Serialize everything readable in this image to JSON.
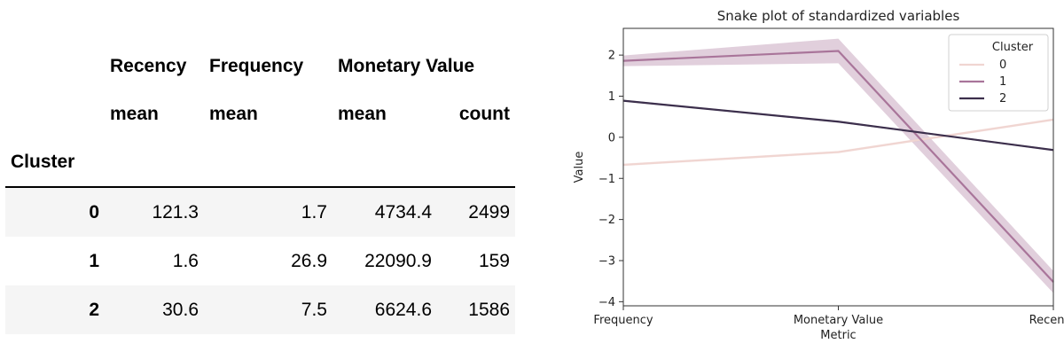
{
  "table": {
    "columns_top": [
      "Recency",
      "Frequency",
      "Monetary Value",
      ""
    ],
    "columns_sub": [
      "mean",
      "mean",
      "mean",
      "count"
    ],
    "index_name": "Cluster",
    "rows": [
      {
        "index": "0",
        "values": [
          "121.3",
          "1.7",
          "4734.4",
          "2499"
        ]
      },
      {
        "index": "1",
        "values": [
          "1.6",
          "26.9",
          "22090.9",
          "159"
        ]
      },
      {
        "index": "2",
        "values": [
          "30.6",
          "7.5",
          "6624.6",
          "1586"
        ]
      }
    ]
  },
  "chart_data": {
    "type": "line",
    "title": "Snake plot of standardized variables",
    "xlabel": "Metric",
    "ylabel": "Value",
    "categories": [
      "Frequency",
      "Monetary Value",
      "Recency"
    ],
    "ylim": [
      -4.1,
      2.65
    ],
    "yticks": [
      -4,
      -3,
      -2,
      -1,
      0,
      1,
      2
    ],
    "legend": {
      "title": "Cluster",
      "position": "top-right"
    },
    "grid": false,
    "series": [
      {
        "name": "0",
        "values": [
          -0.67,
          -0.36,
          0.43
        ],
        "band": [
          0.03,
          0.03,
          0.03
        ],
        "color": "#f0d5d1"
      },
      {
        "name": "1",
        "values": [
          1.86,
          2.1,
          -3.52
        ],
        "band": [
          0.13,
          0.3,
          0.27
        ],
        "color": "#a9759a"
      },
      {
        "name": "2",
        "values": [
          0.89,
          0.38,
          -0.31
        ],
        "band": [
          0.02,
          0.02,
          0.02
        ],
        "color": "#3c2f4c"
      }
    ]
  }
}
